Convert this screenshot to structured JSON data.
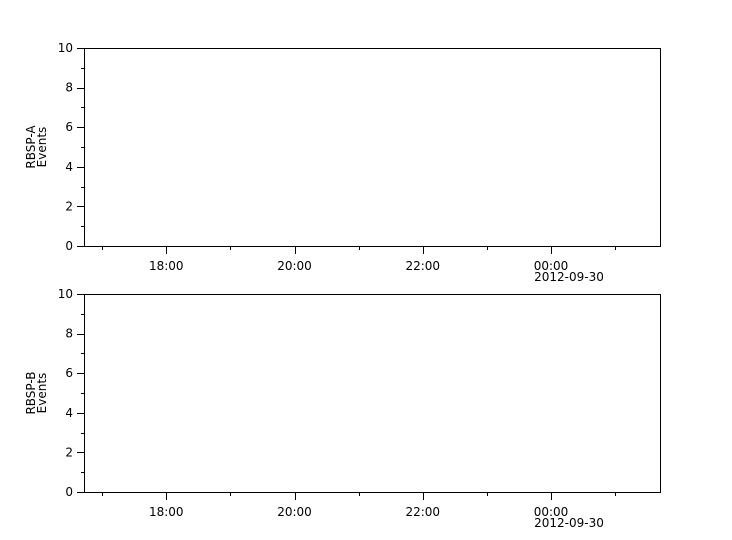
{
  "chart_data": [
    {
      "type": "line",
      "ylabel": [
        "RBSP-A",
        "Events"
      ],
      "ylim": [
        0,
        10
      ],
      "yticks": [
        "0",
        "2",
        "4",
        "6",
        "8",
        "10"
      ],
      "xlim": [
        "2012-09-29T16:43",
        "2012-09-30T01:42"
      ],
      "xticks": [
        {
          "time": "2012-09-29T18:00",
          "label": "18:00"
        },
        {
          "time": "2012-09-29T20:00",
          "label": "20:00"
        },
        {
          "time": "2012-09-29T22:00",
          "label": "22:00"
        },
        {
          "time": "2012-09-30T00:00",
          "label": "00:00",
          "date_label": "2012-09-30"
        }
      ],
      "series": [],
      "grid": false
    },
    {
      "type": "line",
      "ylabel": [
        "RBSP-B",
        "Events"
      ],
      "ylim": [
        0,
        10
      ],
      "yticks": [
        "0",
        "2",
        "4",
        "6",
        "8",
        "10"
      ],
      "xlim": [
        "2012-09-29T16:43",
        "2012-09-30T01:42"
      ],
      "xticks": [
        {
          "time": "2012-09-29T18:00",
          "label": "18:00"
        },
        {
          "time": "2012-09-29T20:00",
          "label": "20:00"
        },
        {
          "time": "2012-09-29T22:00",
          "label": "22:00"
        },
        {
          "time": "2012-09-30T00:00",
          "label": "00:00",
          "date_label": "2012-09-30"
        }
      ],
      "series": [],
      "grid": false
    }
  ]
}
